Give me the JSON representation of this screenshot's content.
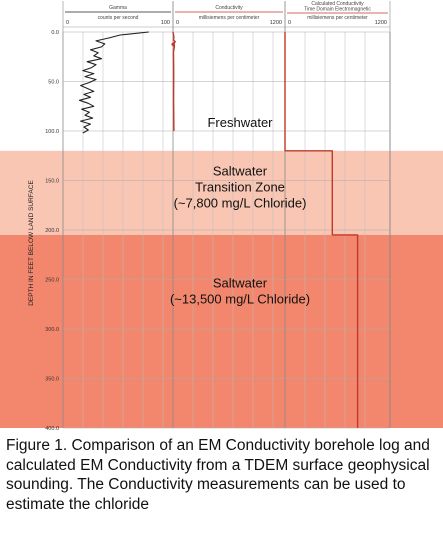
{
  "chart_data": {
    "type": "line",
    "ylabel": "DEPTH IN FEET BELOW LAND SURFACE",
    "ylim": [
      0,
      400
    ],
    "yticks": [
      "0.0",
      "50.0",
      "100.0",
      "150.0",
      "200.0",
      "250.0",
      "300.0",
      "350.0",
      "400.0"
    ],
    "tracks": [
      {
        "title_lines": [
          "Gamma"
        ],
        "units": "counts per second",
        "xlim": [
          0,
          100
        ],
        "xtick_labels": [
          "0",
          "100"
        ],
        "color": "#222222",
        "series": [
          {
            "depth": [
              0,
              3,
              6,
              9,
              12,
              15,
              18,
              21,
              24,
              27,
              30,
              33,
              36,
              39,
              42,
              45,
              48,
              51,
              54,
              57,
              60,
              63,
              66,
              69,
              72,
              75,
              78,
              81,
              84,
              87,
              90,
              93,
              96,
              99,
              102
            ],
            "value": [
              78,
              52,
              42,
              30,
              38,
              35,
              25,
              32,
              28,
              35,
              22,
              30,
              26,
              18,
              28,
              20,
              30,
              24,
              16,
              22,
              28,
              19,
              25,
              15,
              23,
              28,
              17,
              24,
              20,
              27,
              16,
              25,
              19,
              23,
              18
            ]
          }
        ]
      },
      {
        "title_lines": [
          "Conductivity"
        ],
        "units": "millisiemens per centimeter",
        "xlim": [
          0,
          1200
        ],
        "xtick_labels": [
          "0",
          "1200"
        ],
        "color": "#c0392b",
        "series": [
          {
            "depth": [
              0,
              5,
              8,
              10,
              12,
              15,
              20,
              40,
              70,
              100
            ],
            "value": [
              0,
              10,
              5,
              25,
              -10,
              15,
              5,
              8,
              6,
              10
            ]
          }
        ]
      },
      {
        "title_lines": [
          "Calculated Conductivity",
          "Time Domain Electromagnetic"
        ],
        "units": "millisiemens per centimeter",
        "xlim": [
          0,
          1200
        ],
        "xtick_labels": [
          "0",
          "1200"
        ],
        "color": "#c0392b",
        "series": [
          {
            "depth": [
              0,
              120,
              120,
              205,
              205,
              400
            ],
            "value": [
              0,
              0,
              540,
              540,
              830,
              830
            ]
          }
        ]
      }
    ],
    "zones": [
      {
        "name": "freshwater",
        "from": 0,
        "to": 120,
        "color": "#ffffff",
        "label_lines": [
          "Freshwater"
        ],
        "label_depth": 96
      },
      {
        "name": "transition",
        "from": 120,
        "to": 205,
        "color": "#f9c6b4",
        "label_lines": [
          "Saltwater",
          "Transition Zone",
          "(~7,800 mg/L Chloride)"
        ],
        "label_depth": 145
      },
      {
        "name": "saltwater",
        "from": 205,
        "to": 400,
        "color": "#f3876d",
        "label_lines": [
          "Saltwater",
          "(~13,500 mg/L Chloride)"
        ],
        "label_depth": 258
      }
    ]
  },
  "caption": "Figure 1. Comparison of an EM Conductivity borehole log and calculated EM Conductivity from a TDEM surface geophysical sounding. The Conductivity measurements can be used to estimate the chloride"
}
